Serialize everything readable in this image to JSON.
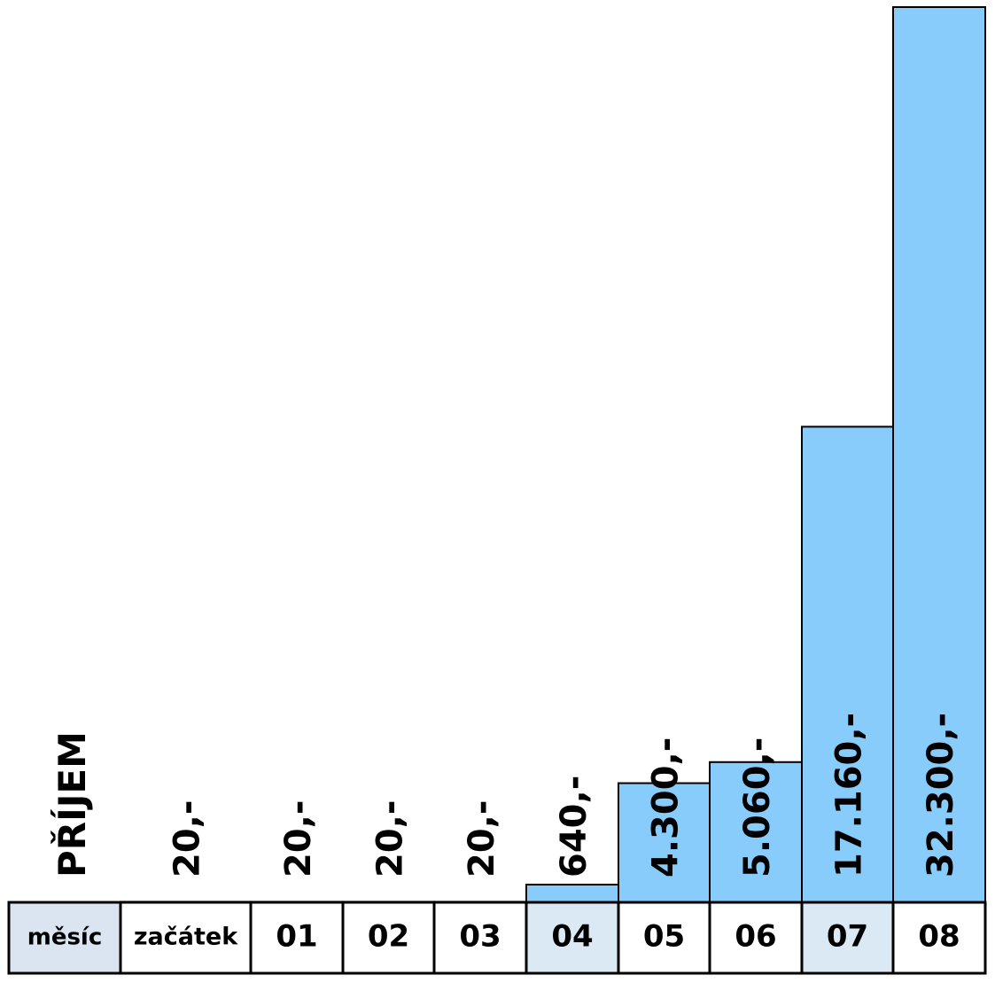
{
  "chart_data": {
    "type": "bar",
    "y_label": "PŘÍJEM",
    "row_header": "měsíc",
    "categories": [
      "začátek",
      "01",
      "02",
      "03",
      "04",
      "05",
      "06",
      "07",
      "08"
    ],
    "values": [
      20,
      20,
      20,
      20,
      640,
      4300,
      5060,
      17160,
      32300
    ],
    "value_labels": [
      "20,-",
      "20,-",
      "20,-",
      "20,-",
      "640,-",
      "4.300,-",
      "5.060,-",
      "17.160,-",
      "32.300,-"
    ],
    "color": "#88ccfc",
    "category_backgrounds": [
      "#ffffff",
      "#ffffff",
      "#ffffff",
      "#ffffff",
      "#dbe9f5",
      "#ffffff",
      "#ffffff",
      "#dbe9f5",
      "#ffffff"
    ],
    "row_header_background": "#dbe5f1"
  }
}
